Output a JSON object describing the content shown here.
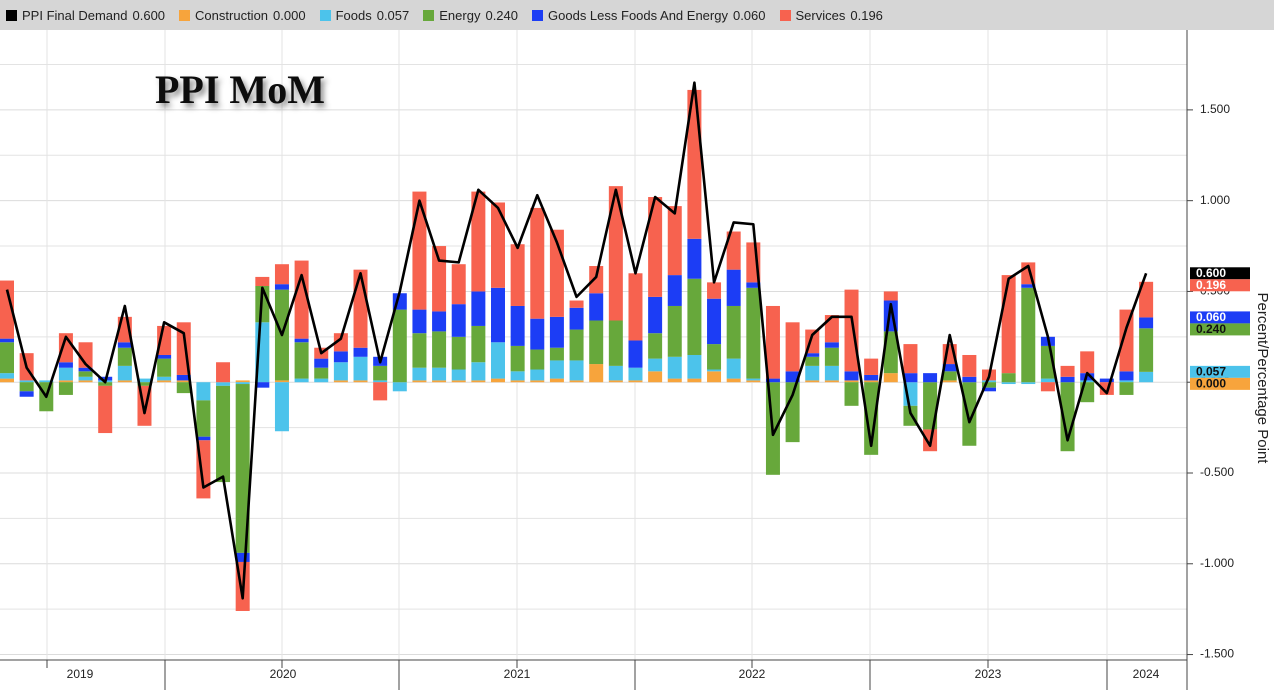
{
  "chart_data": {
    "type": "bar",
    "stacked": true,
    "title": "PPI MoM",
    "y_axis_label": "Percent/Percentage Point",
    "year_labels": [
      "2019",
      "2020",
      "2021",
      "2022",
      "2023",
      "2024"
    ],
    "categories": [
      null,
      null,
      null,
      null,
      null,
      null,
      null,
      null,
      null,
      null,
      null,
      null,
      null,
      null,
      null,
      null,
      null,
      null,
      null,
      null,
      null,
      null,
      null,
      null,
      null,
      null,
      null,
      null,
      null,
      null,
      null,
      null,
      null,
      null,
      null,
      null,
      null,
      null,
      null,
      null,
      null,
      null,
      null,
      null,
      null,
      null,
      null,
      null,
      null,
      null,
      null,
      null,
      null,
      null,
      null,
      null,
      null,
      null,
      null
    ],
    "ylim": [
      -1.53,
      1.94
    ],
    "yticks": [
      {
        "value": 1.5,
        "label": "1.500"
      },
      {
        "value": 1,
        "label": "1.000"
      },
      {
        "value": 0.5,
        "label": "0.500"
      },
      {
        "value": 0,
        "label": "0.000"
      },
      {
        "value": -0.5,
        "label": "-0.500"
      },
      {
        "value": -1,
        "label": "-1.000"
      },
      {
        "value": -1.5,
        "label": "-1.500"
      }
    ],
    "grid": true,
    "series": [
      {
        "name": "PPI Final Demand",
        "type": "line",
        "color": "#000000",
        "values": [
          0.51,
          0.08,
          -0.08,
          0.25,
          0.1,
          0.0,
          0.42,
          -0.17,
          0.33,
          0.27,
          -0.58,
          -0.52,
          -1.19,
          0.52,
          0.26,
          0.59,
          0.16,
          0.24,
          0.6,
          0.11,
          0.5,
          1.0,
          0.67,
          0.66,
          1.06,
          0.96,
          0.74,
          1.03,
          0.77,
          0.47,
          0.58,
          1.06,
          0.6,
          1.02,
          0.93,
          1.65,
          0.55,
          0.88,
          0.87,
          -0.29,
          -0.07,
          0.26,
          0.36,
          0.36,
          -0.35,
          0.43,
          -0.17,
          -0.35,
          0.26,
          -0.22,
          0.03,
          0.57,
          0.64,
          0.25,
          -0.32,
          0.05,
          -0.06,
          0.3,
          0.6
        ],
        "value_labels": [
          null,
          null,
          null,
          null,
          null,
          null,
          null,
          null,
          null,
          null,
          null,
          null,
          null,
          null,
          null,
          null,
          null,
          null,
          null,
          null,
          null,
          null,
          null,
          null,
          null,
          null,
          null,
          null,
          null,
          null,
          null,
          null,
          null,
          null,
          null,
          null,
          null,
          null,
          null,
          null,
          null,
          null,
          null,
          null,
          null,
          null,
          null,
          null,
          null,
          null,
          null,
          null,
          null,
          null,
          null,
          null,
          null,
          null,
          "0.600"
        ]
      },
      {
        "name": "Construction",
        "type": "bar",
        "color": "#f7a43c",
        "values": [
          0.02,
          0,
          0,
          0.01,
          0.01,
          0,
          0.01,
          0,
          0.01,
          0.01,
          0,
          0,
          0.01,
          0,
          0.01,
          0,
          0,
          0.01,
          0.01,
          0,
          0,
          0.01,
          0.01,
          0.01,
          0.01,
          0.02,
          0.01,
          0.01,
          0.02,
          0.01,
          0.1,
          0.01,
          0.01,
          0.06,
          0.02,
          0.02,
          0.06,
          0.02,
          0.01,
          0,
          0,
          0.01,
          0.01,
          0.01,
          0.01,
          0.05,
          0,
          0,
          0.01,
          0,
          0,
          0,
          0,
          0,
          0,
          0,
          0,
          0,
          0
        ],
        "value_labels": [
          null,
          null,
          null,
          null,
          null,
          null,
          null,
          null,
          null,
          null,
          null,
          null,
          null,
          null,
          null,
          null,
          null,
          null,
          null,
          null,
          null,
          null,
          null,
          null,
          null,
          null,
          null,
          null,
          null,
          null,
          null,
          null,
          null,
          null,
          null,
          null,
          null,
          null,
          null,
          null,
          null,
          null,
          null,
          null,
          null,
          null,
          null,
          null,
          null,
          null,
          null,
          null,
          null,
          null,
          null,
          null,
          null,
          null,
          "0.000"
        ]
      },
      {
        "name": "Foods",
        "type": "bar",
        "color": "#4cc3eb",
        "values": [
          0.03,
          0.01,
          0.01,
          0.07,
          0.02,
          0.01,
          0.08,
          0.02,
          0.02,
          0,
          -0.1,
          -0.02,
          -0.01,
          0.33,
          -0.27,
          0.02,
          0.02,
          0.1,
          0.13,
          0.01,
          -0.05,
          0.07,
          0.07,
          0.06,
          0.1,
          0.2,
          0.05,
          0.06,
          0.1,
          0.11,
          0,
          0.08,
          0.07,
          0.07,
          0.12,
          0.13,
          0.01,
          0.11,
          0.01,
          0,
          0,
          0.08,
          0.08,
          0,
          0,
          0,
          -0.13,
          0,
          0,
          0,
          0.01,
          -0.01,
          -0.01,
          0.02,
          0,
          0.01,
          0,
          0.01,
          0.057
        ],
        "value_labels": [
          null,
          null,
          null,
          null,
          null,
          null,
          null,
          null,
          null,
          null,
          null,
          null,
          null,
          null,
          null,
          null,
          null,
          null,
          null,
          null,
          null,
          null,
          null,
          null,
          null,
          null,
          null,
          null,
          null,
          null,
          null,
          null,
          null,
          null,
          null,
          null,
          null,
          null,
          null,
          null,
          null,
          null,
          null,
          null,
          null,
          null,
          null,
          null,
          null,
          null,
          null,
          null,
          null,
          null,
          null,
          null,
          null,
          null,
          "0.057"
        ]
      },
      {
        "name": "Energy",
        "type": "bar",
        "color": "#67a83b",
        "values": [
          0.17,
          -0.05,
          -0.16,
          -0.07,
          0.03,
          -0.02,
          0.1,
          -0.02,
          0.1,
          -0.06,
          -0.2,
          -0.53,
          -0.93,
          0.2,
          0.5,
          0.2,
          0.06,
          0,
          0,
          0.08,
          0.4,
          0.19,
          0.2,
          0.18,
          0.2,
          0,
          0.14,
          0.11,
          0.07,
          0.17,
          0.24,
          0.25,
          0,
          0.14,
          0.28,
          0.42,
          0.14,
          0.29,
          0.5,
          -0.51,
          -0.33,
          0.05,
          0.1,
          -0.13,
          -0.4,
          0.23,
          -0.11,
          -0.26,
          0.05,
          -0.35,
          -0.03,
          0.05,
          0.52,
          0.18,
          -0.38,
          -0.11,
          0,
          -0.07,
          0.24
        ],
        "value_labels": [
          null,
          null,
          null,
          null,
          null,
          null,
          null,
          null,
          null,
          null,
          null,
          null,
          null,
          null,
          null,
          null,
          null,
          null,
          null,
          null,
          null,
          null,
          null,
          null,
          null,
          null,
          null,
          null,
          null,
          null,
          null,
          null,
          null,
          null,
          null,
          null,
          null,
          null,
          null,
          null,
          null,
          null,
          null,
          null,
          null,
          null,
          null,
          null,
          null,
          null,
          null,
          null,
          null,
          null,
          null,
          null,
          null,
          null,
          "0.240"
        ]
      },
      {
        "name": "Goods Less Foods And Energy",
        "type": "bar",
        "color": "#1c3df5",
        "values": [
          0.02,
          -0.03,
          0,
          0.03,
          0.02,
          0.02,
          0.03,
          0,
          0.02,
          0.03,
          -0.02,
          0,
          -0.05,
          -0.03,
          0.03,
          0.02,
          0.05,
          0.06,
          0.05,
          0.05,
          0.09,
          0.13,
          0.11,
          0.18,
          0.19,
          0.3,
          0.22,
          0.17,
          0.17,
          0.12,
          0.15,
          0,
          0.15,
          0.2,
          0.17,
          0.22,
          0.25,
          0.2,
          0.03,
          0.02,
          0.06,
          0.02,
          0.03,
          0.05,
          0.03,
          0.17,
          0.05,
          0.05,
          0.04,
          0.03,
          -0.02,
          0,
          0.02,
          0.05,
          0.03,
          0.04,
          0.02,
          0.05,
          0.06
        ],
        "value_labels": [
          null,
          null,
          null,
          null,
          null,
          null,
          null,
          null,
          null,
          null,
          null,
          null,
          null,
          null,
          null,
          null,
          null,
          null,
          null,
          null,
          null,
          null,
          null,
          null,
          null,
          null,
          null,
          null,
          null,
          null,
          null,
          null,
          null,
          null,
          null,
          null,
          null,
          null,
          null,
          null,
          null,
          null,
          null,
          null,
          null,
          null,
          null,
          null,
          null,
          null,
          null,
          null,
          null,
          null,
          null,
          null,
          null,
          null,
          "0.060"
        ]
      },
      {
        "name": "Services",
        "type": "bar",
        "color": "#f7624f",
        "values": [
          0.32,
          0.15,
          0,
          0.16,
          0.14,
          -0.26,
          0.14,
          -0.22,
          0.16,
          0.29,
          -0.32,
          0.11,
          -0.27,
          0.05,
          0.11,
          0.43,
          0.06,
          0.1,
          0.43,
          -0.1,
          0,
          0.65,
          0.36,
          0.22,
          0.55,
          0.47,
          0.34,
          0.61,
          0.48,
          0.04,
          0.15,
          0.74,
          0.37,
          0.55,
          0.38,
          0.82,
          0.09,
          0.21,
          0.22,
          0.4,
          0.27,
          0.13,
          0.15,
          0.45,
          0.09,
          0.05,
          0.16,
          -0.12,
          0.11,
          0.12,
          0.06,
          0.54,
          0.12,
          -0.05,
          0.06,
          0.12,
          -0.07,
          0.34,
          0.196
        ],
        "value_labels": [
          null,
          null,
          null,
          null,
          null,
          null,
          null,
          null,
          null,
          null,
          null,
          null,
          null,
          null,
          null,
          null,
          null,
          null,
          null,
          null,
          null,
          null,
          null,
          null,
          null,
          null,
          null,
          null,
          null,
          null,
          null,
          null,
          null,
          null,
          null,
          null,
          null,
          null,
          null,
          null,
          null,
          null,
          null,
          null,
          null,
          null,
          null,
          null,
          null,
          null,
          null,
          null,
          null,
          null,
          null,
          null,
          null,
          null,
          "0.196"
        ]
      }
    ]
  }
}
